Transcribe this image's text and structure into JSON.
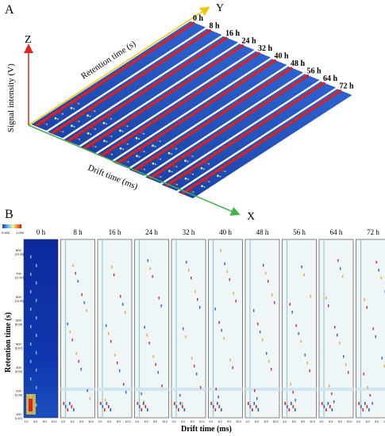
{
  "panelA": {
    "letter": "A",
    "axes": {
      "x": "X",
      "y": "Y",
      "z": "Z"
    },
    "ylabel": "Signal intensity (V)",
    "retention_label": "Retention time (s)",
    "drift_label": "Drift time (ms)",
    "samples": [
      "0 h",
      "8 h",
      "16 h",
      "24 h",
      "32 h",
      "40 h",
      "48 h",
      "56 h",
      "64 h",
      "72 h"
    ]
  },
  "panelB": {
    "letter": "B",
    "samples": [
      "0 h",
      "8 h",
      "16 h",
      "24 h",
      "32 h",
      "40 h",
      "48 h",
      "56 h",
      "64 h",
      "72 h"
    ],
    "ylabel": "Retention time (s)",
    "xlabel": "Drift time (ms)",
    "colorbar_ticks": [
      "0.000",
      "1.000"
    ],
    "y_ticks": [
      "800",
      "700",
      "600",
      "500",
      "400",
      "300",
      "200",
      "100"
    ],
    "y_sub_ticks": [
      "[13.33]",
      "[11.67]",
      "[10.00]",
      "[8.33]",
      "[6.67]",
      "[5.00]",
      "[3.33]",
      "[1.67]"
    ],
    "x_ticks": [
      "4.0",
      "6.0",
      "8.0",
      "10.0"
    ]
  },
  "colors": {
    "background_blue": "#1f4fb8",
    "peak_red": "#e0201b",
    "axis_yellow": "#f2c500",
    "axis_green": "#46b04a",
    "axis_red": "#e3261c"
  }
}
